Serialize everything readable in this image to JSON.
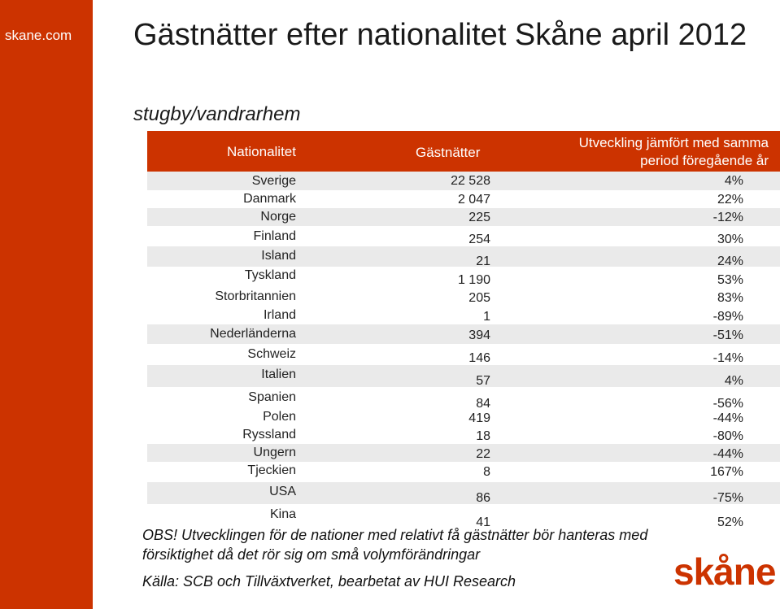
{
  "sidebar": {
    "site": "skane.com"
  },
  "header": {
    "title": "Gästnätter efter nationalitet Skåne april 2012",
    "subtitle": "stugby/vandrarhem"
  },
  "table": {
    "columns": {
      "nationality": "Nationalitet",
      "guest_nights": "Gästnätter",
      "change_line1": "Utveckling jämfört med samma",
      "change_line2": "period föregående år"
    },
    "rows": [
      {
        "nation": "Sverige",
        "nights": "22 528",
        "change": "4%"
      },
      {
        "nation": "Danmark",
        "nights": "2 047",
        "change": "22%"
      },
      {
        "nation": "Norge",
        "nights": "225",
        "change": "-12%"
      },
      {
        "nation": "Finland",
        "nights": "254",
        "change": "30%"
      },
      {
        "nation": "Island",
        "nights": "21",
        "change": "24%"
      },
      {
        "nation": "Tyskland",
        "nights": "1 190",
        "change": "53%"
      },
      {
        "nation": "Storbritannien",
        "nights": "205",
        "change": "83%"
      },
      {
        "nation": "Irland",
        "nights": "1",
        "change": "-89%"
      },
      {
        "nation": "Nederländerna",
        "nights": "394",
        "change": "-51%"
      },
      {
        "nation": "Schweiz",
        "nights": "146",
        "change": "-14%"
      },
      {
        "nation": "Italien",
        "nights": "57",
        "change": "4%"
      },
      {
        "nation": "Spanien",
        "nights": "84",
        "change": "-56%"
      },
      {
        "nation": "Polen",
        "nights": "419",
        "change": "-44%"
      },
      {
        "nation": "Ryssland",
        "nights": "18",
        "change": "-80%"
      },
      {
        "nation": "Ungern",
        "nights": "22",
        "change": "-44%"
      },
      {
        "nation": "Tjeckien",
        "nights": "8",
        "change": "167%"
      },
      {
        "nation": "USA",
        "nights": "86",
        "change": "-75%"
      },
      {
        "nation": "Kina",
        "nights": "41",
        "change": "52%"
      }
    ]
  },
  "footer": {
    "note": "OBS! Utvecklingen för de nationer med relativt få gästnätter bör hanteras med försiktighet då det rör sig om små volymförändringar",
    "source": "Källa: SCB och Tillväxtverket, bearbetat av HUI Research",
    "logo_text": "skåne"
  },
  "colors": {
    "accent": "#cc3300",
    "row_shade": "#eaeaea"
  }
}
